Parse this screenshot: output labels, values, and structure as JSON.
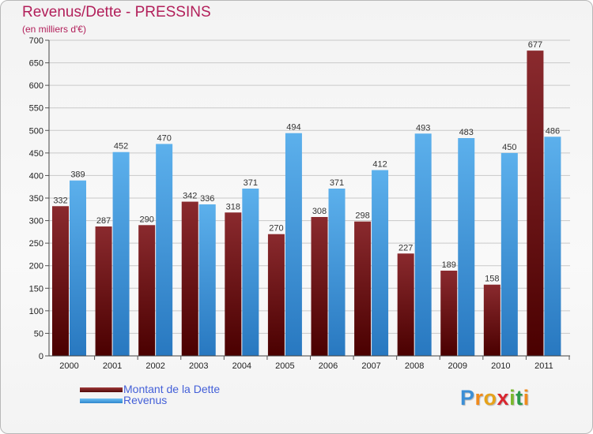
{
  "title": "Revenus/Dette - PRESSINS",
  "subtitle": "(en milliers d'€)",
  "chart_data": {
    "type": "bar",
    "title": "Revenus/Dette - PRESSINS",
    "ylabel": "(en milliers d'€)",
    "xlabel": "",
    "categories": [
      "2000",
      "2001",
      "2002",
      "2003",
      "2004",
      "2005",
      "2006",
      "2007",
      "2008",
      "2009",
      "2010",
      "2011"
    ],
    "series": [
      {
        "name": "Montant de la Dette",
        "color": "#7d1a1a",
        "values": [
          332,
          287,
          290,
          342,
          318,
          270,
          308,
          298,
          227,
          189,
          158,
          677
        ]
      },
      {
        "name": "Revenus",
        "color": "#4aa8e8",
        "values": [
          389,
          452,
          470,
          336,
          371,
          494,
          371,
          412,
          493,
          483,
          450,
          486
        ]
      }
    ],
    "ylim": [
      0,
      700
    ],
    "yticks": [
      0,
      50,
      100,
      150,
      200,
      250,
      300,
      350,
      400,
      450,
      500,
      550,
      600,
      650,
      700
    ],
    "grid": true,
    "legend": "bottom-left"
  },
  "legend": {
    "items": [
      {
        "label": "Montant de la Dette",
        "color": "#7d1a1a"
      },
      {
        "label": "Revenus",
        "color": "#4aa8e8"
      }
    ]
  },
  "logo": {
    "letters": [
      "P",
      "r",
      "o",
      "x",
      "i",
      "t",
      "i"
    ],
    "colors": [
      "#3c8fd6",
      "#f08a1c",
      "#e6a21a",
      "#d9262f",
      "#7bb82d",
      "#2a9a4a",
      "#f08a1c"
    ]
  }
}
